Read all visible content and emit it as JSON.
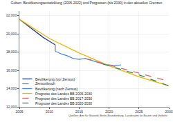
{
  "chart_data": {
    "type": "line",
    "title": "Guben: Bevölkerungsentwicklung (2005-2022) und Prognosen (bis 2030) in den aktuellen Grenzen",
    "annotations": [
      "Quellen: Amt für Statistik Berlin-Brandenburg, Landesamt für Bauen und Verkehr"
    ],
    "xlim": [
      2005,
      2030
    ],
    "xticks": [
      2005,
      2010,
      2015,
      2020,
      2025,
      2030
    ],
    "ylim": [
      12000,
      22500
    ],
    "yticks": [
      {
        "value": 12000,
        "label": "12,000"
      },
      {
        "value": 14000,
        "label": "14,000"
      },
      {
        "value": 16000,
        "label": "16,000"
      },
      {
        "value": 18000,
        "label": "18,000"
      },
      {
        "value": 20000,
        "label": "20,000"
      },
      {
        "value": 22000,
        "label": "22,000"
      }
    ],
    "grid": true,
    "legend": "lower left",
    "series": [
      {
        "name": "Bevölkerung (vor Zensus)",
        "color": "#1f3a93",
        "line_style": "solid",
        "x": [
          2005,
          2006,
          2007,
          2008,
          2009,
          2010,
          2011
        ],
        "values": [
          21600,
          21100,
          20600,
          20100,
          19600,
          19200,
          18800
        ]
      },
      {
        "name": "Zensusbruch",
        "color": "#808080",
        "line_style": "dashed",
        "x": [
          2011,
          2011
        ],
        "values": [
          18800,
          18100
        ]
      },
      {
        "name": "Bevölkerung (nach Zensus)",
        "color": "#4a86e8",
        "line_style": "solid",
        "x": [
          2011,
          2012,
          2013,
          2014,
          2015,
          2016,
          2017,
          2018,
          2019,
          2020,
          2021,
          2022
        ],
        "values": [
          18100,
          17800,
          17600,
          17300,
          17200,
          17300,
          17100,
          16900,
          16700,
          16600,
          16500,
          16600
        ]
      },
      {
        "name": "Prognose des Landes BB 2005-2030",
        "color": "#f0b400",
        "line_style": "solid",
        "x": [
          2005,
          2010,
          2015,
          2020,
          2025,
          2030
        ],
        "values": [
          21600,
          19500,
          17900,
          16500,
          15300,
          14300
        ]
      },
      {
        "name": "Prognose des Landes BB 2017-2030",
        "color": "#e06666",
        "line_style": "dashed",
        "x": [
          2016,
          2020,
          2025,
          2030
        ],
        "values": [
          17300,
          16600,
          15700,
          14800
        ]
      },
      {
        "name": "Prognose des Landes BB 2020-2030",
        "color": "#2e8b57",
        "line_style": "dashed",
        "x": [
          2019,
          2025,
          2030
        ],
        "values": [
          16700,
          15500,
          14300
        ]
      }
    ]
  }
}
